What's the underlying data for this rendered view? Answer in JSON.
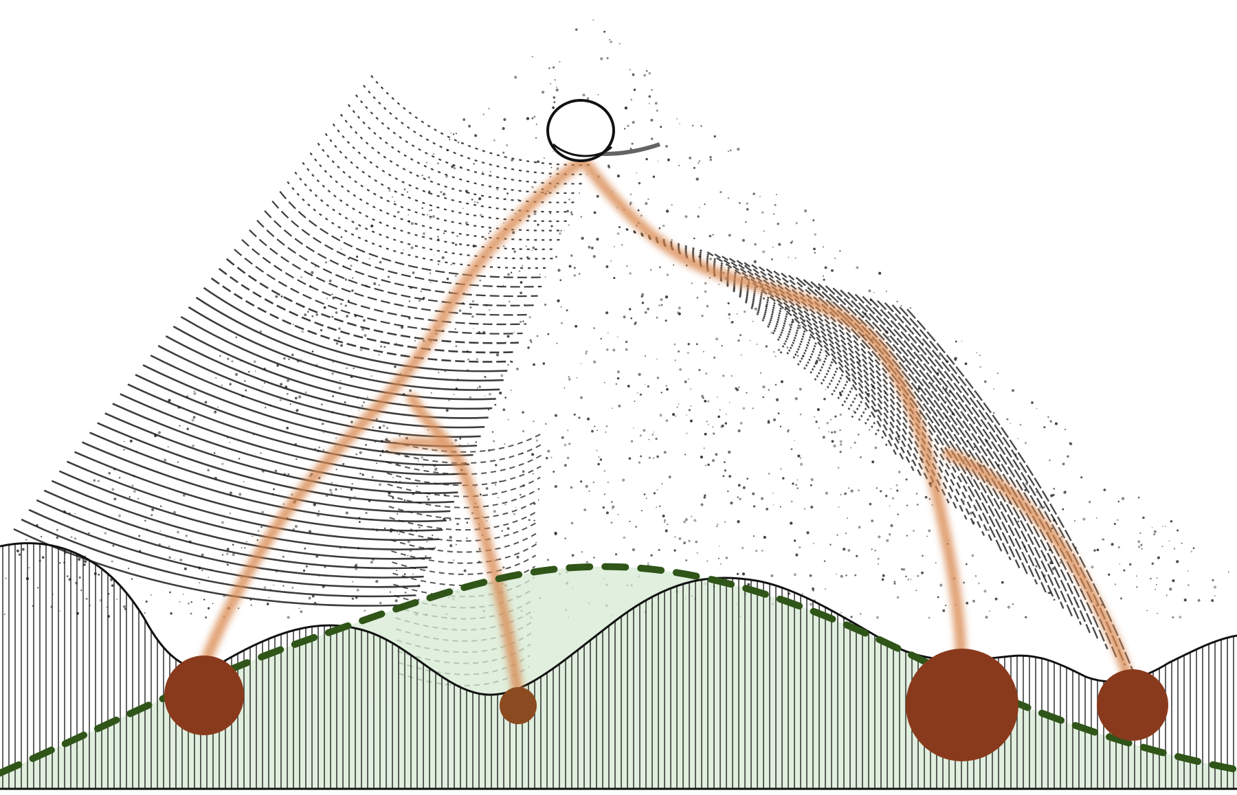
{
  "colors": {
    "background": "#ffffff",
    "ink": "#111111",
    "hatching": "#1a1a1a",
    "sphere_fill": "#ffffff",
    "valley_dots_large": "#8a3a1c",
    "valley_dots_small": "#8b4a1f",
    "paths": "#d98850",
    "basin_fill": "#d6ead3",
    "dashed_curve": "#2f5518"
  },
  "elements": {
    "sphere": "ball-at-summit",
    "paths_count": 5,
    "valley_dots_count": 4
  }
}
